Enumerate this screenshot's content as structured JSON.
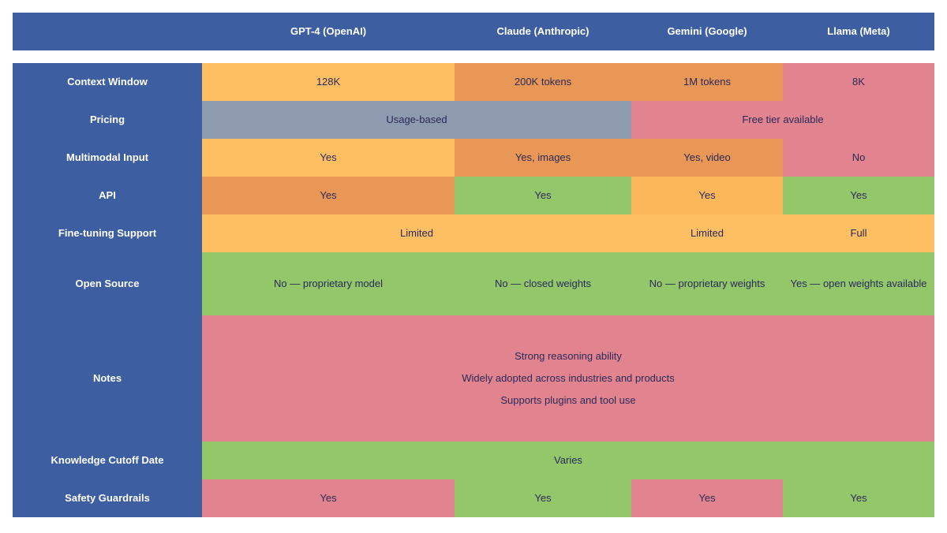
{
  "header": {
    "columns": [
      "",
      "GPT-4 (OpenAI)",
      "Claude (Anthropic)",
      "Gemini (Google)",
      "Llama (Meta)"
    ]
  },
  "rows": [
    {
      "label": "Context Window",
      "cells": [
        {
          "text": "128K",
          "color": "#fdbf62",
          "span": 1
        },
        {
          "text": "200K tokens",
          "color": "#e89756",
          "span": 1
        },
        {
          "text": "1M tokens",
          "color": "#e89756",
          "span": 1
        },
        {
          "text": "8K",
          "color": "#e2848f",
          "span": 1
        }
      ]
    },
    {
      "label": "Pricing",
      "cells": [
        {
          "text": "Usage-based",
          "color": "#8e9aae",
          "span": 2
        },
        {
          "text": "Free tier available",
          "color": "#e2848f",
          "span": 2
        }
      ]
    },
    {
      "label": "Multimodal Input",
      "cells": [
        {
          "text": "Yes",
          "color": "#fdbf62",
          "span": 1
        },
        {
          "text": "Yes, images",
          "color": "#e89756",
          "span": 1
        },
        {
          "text": "Yes, video",
          "color": "#e89756",
          "span": 1
        },
        {
          "text": "No",
          "color": "#e2848f",
          "span": 1
        }
      ]
    },
    {
      "label": "API",
      "cells": [
        {
          "text": "Yes",
          "color": "#e89756",
          "span": 1
        },
        {
          "text": "Yes",
          "color": "#94c66a",
          "span": 1
        },
        {
          "text": "Yes",
          "color": "#fcb75a",
          "span": 1
        },
        {
          "text": "Yes",
          "color": "#94c66a",
          "span": 1
        }
      ]
    },
    {
      "label": "Fine-tuning Support",
      "cells": [
        {
          "text": "Limited",
          "color": "#fdbf62",
          "span": 2
        },
        {
          "text": "Limited",
          "color": "#fdbf62",
          "span": 1
        },
        {
          "text": "Full",
          "color": "#fdbf62",
          "span": 1
        }
      ]
    },
    {
      "label": "Open Source",
      "cells": [
        {
          "text": "No — proprietary model",
          "color": "#94c66a",
          "span": 1
        },
        {
          "text": "No — closed weights",
          "color": "#94c66a",
          "span": 1
        },
        {
          "text": "No — proprietary weights",
          "color": "#94c66a",
          "span": 1
        },
        {
          "text": "Yes — open weights available",
          "color": "#94c66a",
          "span": 1
        }
      ]
    },
    {
      "label": "Notes",
      "cells": [
        {
          "lines": [
            "Strong reasoning ability",
            "Widely adopted across industries and products",
            "Supports plugins and tool use"
          ],
          "color": "#e2848f",
          "span": 4,
          "text": "Strong reasoning ability"
        }
      ]
    },
    {
      "label": "Knowledge Cutoff Date",
      "cells": [
        {
          "text": "Varies",
          "color": "#94c66a",
          "span": 4
        }
      ]
    },
    {
      "label": "Safety Guardrails",
      "cells": [
        {
          "text": "Yes",
          "color": "#e2848f",
          "span": 1
        },
        {
          "text": "Yes",
          "color": "#94c66a",
          "span": 1
        },
        {
          "text": "Yes",
          "color": "#e2848f",
          "span": 1
        },
        {
          "text": "Yes",
          "color": "#94c66a",
          "span": 1
        }
      ]
    }
  ]
}
